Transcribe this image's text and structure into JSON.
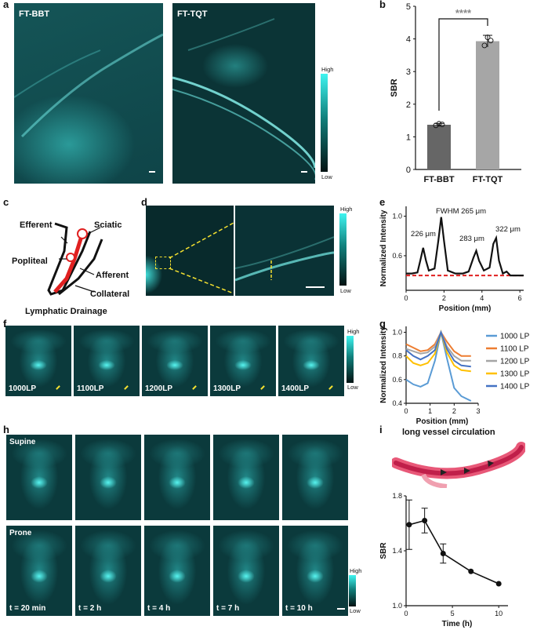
{
  "panels": {
    "a": {
      "letter": "a",
      "left_label": "FT-BBT",
      "right_label": "FT-TQT",
      "cbar_high": "High",
      "cbar_low": "Low"
    },
    "b": {
      "letter": "b",
      "stars": "****"
    },
    "c": {
      "letter": "c",
      "labels": [
        "Efferent",
        "Sciatic",
        "Popliteal",
        "Afferent",
        "Collateral",
        "Lymphatic Drainage"
      ]
    },
    "d": {
      "letter": "d",
      "cbar_high": "High",
      "cbar_low": "Low"
    },
    "e": {
      "letter": "e",
      "annotations": [
        "FWHM 265 μm",
        "226 μm",
        "283 μm",
        "322 μm"
      ]
    },
    "f": {
      "letter": "f",
      "images": [
        "1000LP",
        "1100LP",
        "1200LP",
        "1300LP",
        "1400LP"
      ],
      "cbar_high": "High",
      "cbar_low": "Low"
    },
    "g": {
      "letter": "g"
    },
    "h": {
      "letter": "h",
      "row1": "Supine",
      "row2": "Prone",
      "times": [
        "t = 20 min",
        "t = 2 h",
        "t = 4 h",
        "t = 7 h",
        "t = 10 h"
      ],
      "cbar_high": "High",
      "cbar_low": "Low"
    },
    "i": {
      "letter": "i",
      "title": "long vessel circulation"
    }
  },
  "colors": {
    "accent": "#2fe3df",
    "red": "#e02020",
    "dark_bar": "#666666",
    "light_bar": "#a6a6a6"
  },
  "chart_data": [
    {
      "id": "b",
      "type": "bar",
      "categories": [
        "FT-BBT",
        "FT-TQT"
      ],
      "values": [
        1.37,
        3.93
      ],
      "errors": [
        0.04,
        0.18
      ],
      "points": [
        [
          1.35,
          1.4,
          1.38
        ],
        [
          3.8,
          4.05,
          3.95
        ]
      ],
      "ylabel": "SBR",
      "ylim": [
        0,
        5
      ],
      "yticks": [
        0,
        1,
        2,
        3,
        4,
        5
      ]
    },
    {
      "id": "e",
      "type": "line",
      "xlabel": "Position (mm)",
      "ylabel": "Normalized Intensity",
      "xlim": [
        0,
        6.2
      ],
      "ylim": [
        0.25,
        1.1
      ],
      "xticks": [
        0,
        2,
        4,
        6
      ],
      "yticks": [
        0.2,
        0.6,
        1.0
      ],
      "series": [
        {
          "x": [
            0,
            0.3,
            0.6,
            0.75,
            0.9,
            1.05,
            1.2,
            1.5,
            1.7,
            1.85,
            2.0,
            2.2,
            2.6,
            3.0,
            3.3,
            3.55,
            3.7,
            3.85,
            4.1,
            4.4,
            4.6,
            4.75,
            4.9,
            5.1,
            5.3,
            5.5,
            5.8,
            6.2
          ],
          "y": [
            0.42,
            0.42,
            0.43,
            0.55,
            0.68,
            0.55,
            0.45,
            0.47,
            0.75,
            0.99,
            0.75,
            0.45,
            0.42,
            0.42,
            0.44,
            0.58,
            0.65,
            0.55,
            0.45,
            0.48,
            0.72,
            0.78,
            0.55,
            0.42,
            0.44,
            0.4,
            0.4,
            0.4
          ]
        },
        {
          "x": [
            0,
            6.2
          ],
          "y": [
            0.4,
            0.4
          ]
        }
      ]
    },
    {
      "id": "g",
      "type": "line",
      "xlabel": "Position (mm)",
      "ylabel": "Normalized Intensity",
      "xlim": [
        0,
        3
      ],
      "ylim": [
        0.4,
        1.05
      ],
      "xticks": [
        0,
        1,
        2,
        3
      ],
      "yticks": [
        0.4,
        0.6,
        0.8,
        1.0
      ],
      "series": [
        {
          "name": "1000 LP",
          "color": "#5a9bd5",
          "x": [
            0,
            0.3,
            0.6,
            0.9,
            1.2,
            1.45,
            1.7,
            2.0,
            2.3,
            2.7
          ],
          "y": [
            0.6,
            0.56,
            0.54,
            0.57,
            0.76,
            1.0,
            0.78,
            0.53,
            0.46,
            0.42
          ]
        },
        {
          "name": "1100 LP",
          "color": "#ed7d31",
          "x": [
            0,
            0.3,
            0.6,
            0.9,
            1.2,
            1.45,
            1.7,
            2.0,
            2.3,
            2.7
          ],
          "y": [
            0.9,
            0.87,
            0.84,
            0.85,
            0.9,
            1.0,
            0.92,
            0.84,
            0.8,
            0.8
          ]
        },
        {
          "name": "1200 LP",
          "color": "#a5a5a5",
          "x": [
            0,
            0.3,
            0.6,
            0.9,
            1.2,
            1.45,
            1.7,
            2.0,
            2.3,
            2.7
          ],
          "y": [
            0.86,
            0.84,
            0.82,
            0.83,
            0.88,
            1.0,
            0.88,
            0.8,
            0.76,
            0.76
          ]
        },
        {
          "name": "1300 LP",
          "color": "#ffc000",
          "x": [
            0,
            0.3,
            0.6,
            0.9,
            1.2,
            1.45,
            1.7,
            2.0,
            2.3,
            2.7
          ],
          "y": [
            0.8,
            0.74,
            0.72,
            0.74,
            0.82,
            1.0,
            0.83,
            0.72,
            0.68,
            0.67
          ]
        },
        {
          "name": "1400 LP",
          "color": "#4472c4",
          "x": [
            0,
            0.3,
            0.6,
            0.9,
            1.2,
            1.45,
            1.7,
            2.0,
            2.3,
            2.7
          ],
          "y": [
            0.85,
            0.8,
            0.77,
            0.8,
            0.85,
            1.0,
            0.86,
            0.76,
            0.72,
            0.71
          ]
        }
      ]
    },
    {
      "id": "i",
      "type": "line",
      "xlabel": "Time (h)",
      "ylabel": "SBR",
      "xlim": [
        0,
        11
      ],
      "ylim": [
        1.0,
        1.8
      ],
      "xticks": [
        0,
        5,
        10
      ],
      "yticks": [
        1.0,
        1.4,
        1.8
      ],
      "series": [
        {
          "x": [
            0.33,
            2,
            4,
            7,
            10
          ],
          "y": [
            1.59,
            1.62,
            1.38,
            1.25,
            1.16
          ],
          "err": [
            0.18,
            0.09,
            0.07,
            0,
            0
          ]
        }
      ]
    }
  ]
}
